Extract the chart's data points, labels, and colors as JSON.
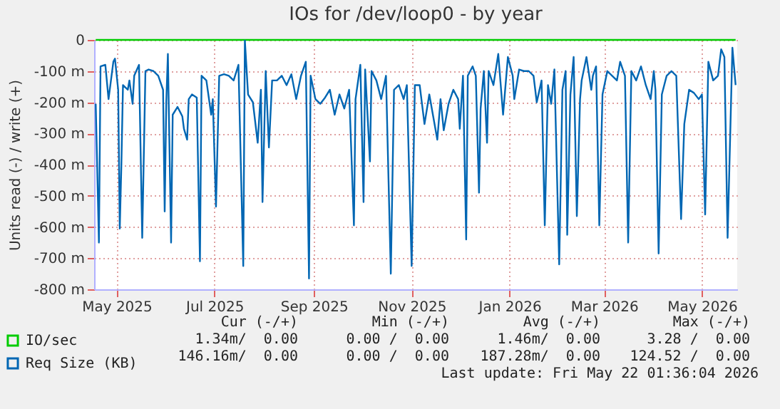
{
  "chart_data": {
    "type": "line",
    "title": "IOs for /dev/loop0 - by year",
    "ylabel": "Units read (-) / write (+)",
    "x": [
      "2025-04-18",
      "2025-04-20",
      "2025-04-21",
      "2025-04-24",
      "2025-04-26",
      "2025-04-29",
      "2025-04-30",
      "2025-05-02",
      "2025-05-03",
      "2025-05-04",
      "2025-05-05",
      "2025-05-08",
      "2025-05-09",
      "2025-05-11",
      "2025-05-12",
      "2025-05-15",
      "2025-05-17",
      "2025-05-19",
      "2025-05-21",
      "2025-05-24",
      "2025-05-27",
      "2025-05-30",
      "2025-05-31",
      "2025-06-01",
      "2025-06-02",
      "2025-06-04",
      "2025-06-05",
      "2025-06-08",
      "2025-06-11",
      "2025-06-12",
      "2025-06-14",
      "2025-06-15",
      "2025-06-17",
      "2025-06-20",
      "2025-06-22",
      "2025-06-23",
      "2025-06-26",
      "2025-06-29",
      "2025-06-30",
      "2025-07-02",
      "2025-07-04",
      "2025-07-07",
      "2025-07-10",
      "2025-07-13",
      "2025-07-16",
      "2025-07-19",
      "2025-07-20",
      "2025-07-22",
      "2025-07-25",
      "2025-07-28",
      "2025-07-30",
      "2025-07-31",
      "2025-08-02",
      "2025-08-04",
      "2025-08-06",
      "2025-08-09",
      "2025-08-12",
      "2025-08-15",
      "2025-08-18",
      "2025-08-21",
      "2025-08-24",
      "2025-08-27",
      "2025-08-29",
      "2025-08-30",
      "2025-09-02",
      "2025-09-05",
      "2025-09-08",
      "2025-09-11",
      "2025-09-14",
      "2025-09-17",
      "2025-09-20",
      "2025-09-23",
      "2025-09-26",
      "2025-09-27",
      "2025-09-30",
      "2025-10-02",
      "2025-10-03",
      "2025-10-06",
      "2025-10-07",
      "2025-10-10",
      "2025-10-13",
      "2025-10-16",
      "2025-10-19",
      "2025-10-21",
      "2025-10-24",
      "2025-10-27",
      "2025-10-29",
      "2025-11-01",
      "2025-11-03",
      "2025-11-06",
      "2025-11-09",
      "2025-11-12",
      "2025-11-17",
      "2025-11-19",
      "2025-11-21",
      "2025-11-24",
      "2025-11-27",
      "2025-11-30",
      "2025-12-01",
      "2025-12-03",
      "2025-12-05",
      "2025-12-06",
      "2025-12-09",
      "2025-12-11",
      "2025-12-13",
      "2025-12-14",
      "2025-12-16",
      "2025-12-18",
      "2025-12-19",
      "2025-12-22",
      "2025-12-25",
      "2025-12-28",
      "2025-12-31",
      "2026-01-03",
      "2026-01-04",
      "2026-01-07",
      "2026-01-10",
      "2026-01-13",
      "2026-01-16",
      "2026-01-18",
      "2026-01-21",
      "2026-01-23",
      "2026-01-25",
      "2026-01-27",
      "2026-01-29",
      "2026-02-01",
      "2026-02-03",
      "2026-02-05",
      "2026-02-06",
      "2026-02-08",
      "2026-02-10",
      "2026-02-12",
      "2026-02-14",
      "2026-02-15",
      "2026-02-18",
      "2026-02-21",
      "2026-02-22",
      "2026-02-24",
      "2026-02-26",
      "2026-02-28",
      "2026-03-03",
      "2026-03-06",
      "2026-03-09",
      "2026-03-11",
      "2026-03-14",
      "2026-03-16",
      "2026-03-18",
      "2026-03-21",
      "2026-03-24",
      "2026-03-27",
      "2026-03-30",
      "2026-04-01",
      "2026-04-02",
      "2026-04-04",
      "2026-04-06",
      "2026-04-09",
      "2026-04-12",
      "2026-04-15",
      "2026-04-18",
      "2026-04-20",
      "2026-04-23",
      "2026-04-26",
      "2026-04-29",
      "2026-05-01",
      "2026-05-03",
      "2026-05-05",
      "2026-05-08",
      "2026-05-11",
      "2026-05-13",
      "2026-05-15",
      "2026-05-17",
      "2026-05-20",
      "2026-05-21",
      "2026-05-22"
    ],
    "series": [
      {
        "name": "IO/sec",
        "color": "#00cc00",
        "x": [
          "2025-04-18",
          "2025-07-01",
          "2025-10-01",
          "2026-01-01",
          "2026-04-01",
          "2026-05-22"
        ],
        "values": [
          0,
          0,
          0,
          0,
          0,
          0
        ]
      },
      {
        "name": "Req Size (KB)",
        "color": "#0066b3",
        "values": [
          -205,
          -650,
          -85,
          -80,
          -190,
          -70,
          -60,
          -160,
          -605,
          -400,
          -145,
          -160,
          -130,
          -205,
          -115,
          -80,
          -635,
          -100,
          -95,
          -100,
          -115,
          -160,
          -550,
          -200,
          -45,
          -650,
          -240,
          -215,
          -245,
          -285,
          -320,
          -190,
          -175,
          -185,
          -710,
          -115,
          -130,
          -240,
          -190,
          -535,
          -115,
          -110,
          -115,
          -130,
          -80,
          -725,
          -2,
          -175,
          -200,
          -330,
          -160,
          -520,
          -100,
          -345,
          -130,
          -130,
          -115,
          -145,
          -110,
          -190,
          -115,
          -70,
          -765,
          -115,
          -190,
          -205,
          -185,
          -160,
          -240,
          -175,
          -220,
          -160,
          -595,
          -190,
          -80,
          -520,
          -95,
          -390,
          -100,
          -130,
          -190,
          -115,
          -750,
          -160,
          -145,
          -190,
          -145,
          -725,
          -145,
          -145,
          -270,
          -175,
          -320,
          -190,
          -290,
          -205,
          -160,
          -190,
          -285,
          -115,
          -640,
          -115,
          -85,
          -115,
          -490,
          -220,
          -100,
          -330,
          -100,
          -145,
          -45,
          -240,
          -55,
          -115,
          -190,
          -95,
          -100,
          -100,
          -115,
          -200,
          -130,
          -595,
          -145,
          -205,
          -95,
          -720,
          -160,
          -100,
          -625,
          -175,
          -55,
          -565,
          -190,
          -130,
          -55,
          -160,
          -115,
          -85,
          -595,
          -175,
          -100,
          -115,
          -130,
          -70,
          -115,
          -650,
          -100,
          -130,
          -85,
          -145,
          -190,
          -100,
          -160,
          -685,
          -175,
          -115,
          -100,
          -115,
          -575,
          -270,
          -160,
          -170,
          -190,
          -175,
          -560,
          -70,
          -130,
          -115,
          -30,
          -55,
          -635,
          -25,
          -85,
          -145
        ]
      }
    ],
    "xlim": [
      "2025-04-17",
      "2026-05-23"
    ],
    "xticks": [
      {
        "value": "2025-05-01",
        "label": "May 2025"
      },
      {
        "value": "2025-07-01",
        "label": "Jul 2025"
      },
      {
        "value": "2025-09-01",
        "label": "Sep 2025"
      },
      {
        "value": "2025-11-01",
        "label": "Nov 2025"
      },
      {
        "value": "2026-01-01",
        "label": "Jan 2026"
      },
      {
        "value": "2026-03-01",
        "label": "Mar 2026"
      },
      {
        "value": "2026-05-01",
        "label": "May 2026"
      }
    ],
    "ylim": [
      -800,
      0
    ],
    "yticks": [
      {
        "value": -800,
        "label": "-800 m"
      },
      {
        "value": -700,
        "label": "-700 m"
      },
      {
        "value": -600,
        "label": "-600 m"
      },
      {
        "value": -500,
        "label": "-500 m"
      },
      {
        "value": -400,
        "label": "-400 m"
      },
      {
        "value": -300,
        "label": "-300 m"
      },
      {
        "value": -200,
        "label": "-200 m"
      },
      {
        "value": -100,
        "label": "-100 m"
      },
      0
    ],
    "grid": true,
    "legend": "bottom left",
    "marker": "none",
    "line_style": "solid",
    "annotations": [
      "Cur (-/+)",
      "Min (-/+)",
      "Avg (-/+)",
      "Max (-/+)",
      "1.34m/  0.00",
      "0.00 /  0.00",
      "1.46m/  0.00",
      "3.28 /  0.00",
      "146.16m/  0.00",
      "0.00 /  0.00",
      "187.28m/  0.00",
      "124.52 /  0.00",
      "Last update: Fri May 22 01:36:04 2026"
    ]
  }
}
